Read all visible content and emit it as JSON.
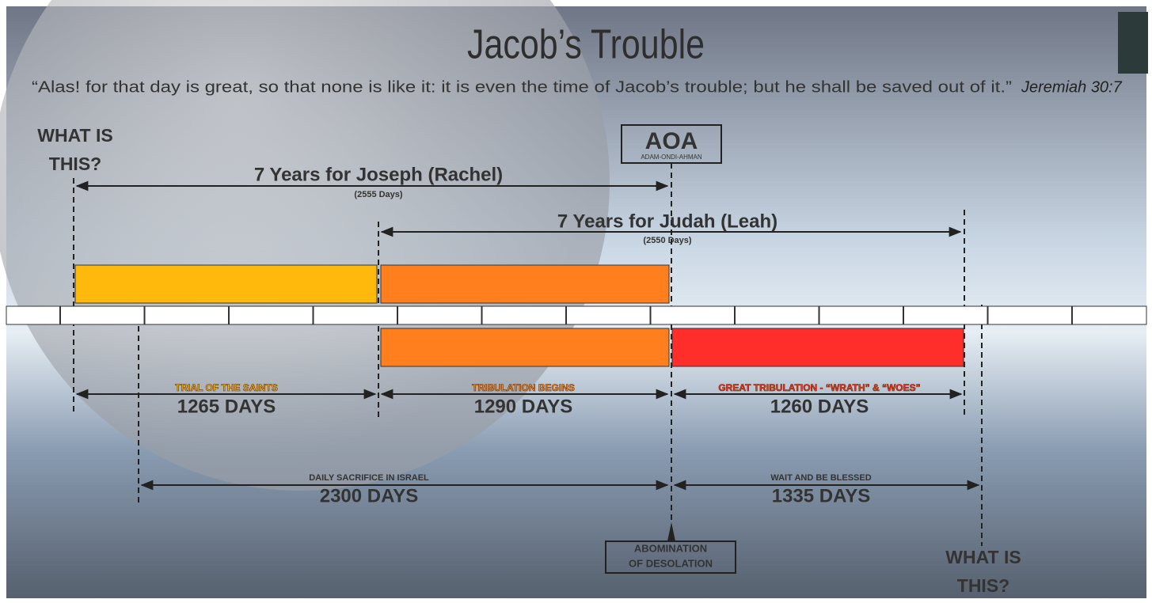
{
  "title": "Jacob’s Trouble",
  "quote": "“Alas! for that day is great, so that none is like it: it is even the time of Jacob’s trouble; but he shall be saved out of it.”",
  "citation": "Jeremiah 30:7",
  "left_question": [
    "WHAT IS",
    "THIS?"
  ],
  "right_question": [
    "WHAT IS",
    "THIS?"
  ],
  "aoa": {
    "title": "AOA",
    "subtitle": "ADAM-ONDI-AHMAN"
  },
  "joseph": {
    "label": "7 Years for Joseph (Rachel)",
    "days": "(2555 Days)"
  },
  "judah": {
    "label": "7 Years for Judah (Leah)",
    "days": "(2550 Days)"
  },
  "periods": [
    {
      "caption": "TRIAL OF THE SAINTS",
      "days": "1265 DAYS"
    },
    {
      "caption": "TRIBULATION BEGINS",
      "days": "1290 DAYS"
    },
    {
      "caption": "GREAT TRIBULATION - “WRATH” & “WOES”",
      "days": "1260 DAYS"
    }
  ],
  "lower_periods": [
    {
      "caption": "DAILY SACRIFICE IN ISRAEL",
      "days": "2300 DAYS"
    },
    {
      "caption": "WAIT AND BE BLESSED",
      "days": "1335 DAYS"
    }
  ],
  "abomination": [
    "ABOMINATION",
    "OF DESOLATION"
  ]
}
